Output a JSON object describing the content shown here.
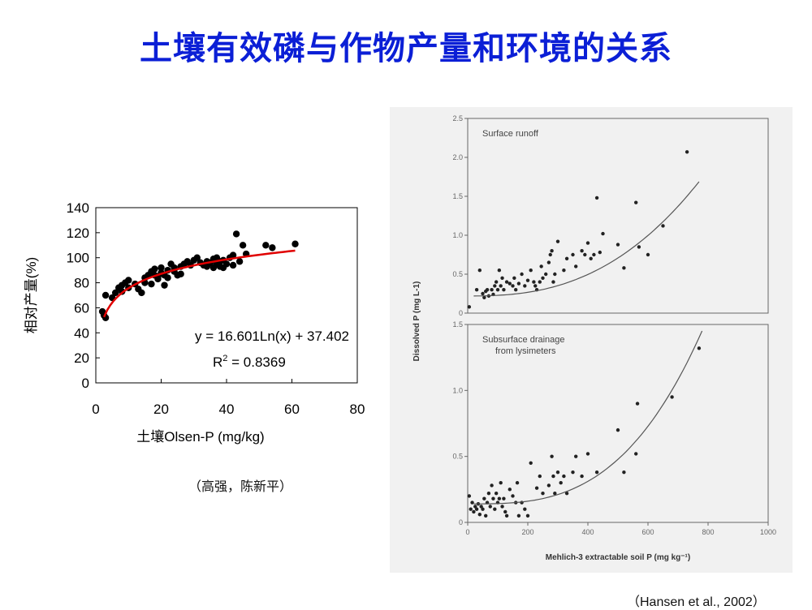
{
  "slide": {
    "title": "土壤有效磷与作物产量和环境的关系",
    "citation_left": "（高强，陈新平）",
    "citation_right": "（Hansen et al., 2002）"
  },
  "chart_data": [
    {
      "type": "scatter",
      "xlabel": "土壤Olsen-P (mg/kg)",
      "ylabel": "相对产量(%)",
      "xlim": [
        0,
        80
      ],
      "ylim": [
        0,
        140
      ],
      "xticks": [
        "0",
        "20",
        "40",
        "60",
        "80"
      ],
      "yticks": [
        "0",
        "20",
        "40",
        "60",
        "80",
        "100",
        "120",
        "140"
      ],
      "grid": false,
      "equation": "y = 16.601Ln(x) + 37.402",
      "r2_label": "R",
      "r2_sup": "2",
      "r2_value": " = 0.8369",
      "fit": {
        "kind": "logarithmic",
        "a": 16.601,
        "b": 37.402,
        "x_range": [
          2.5,
          61
        ],
        "color": "#e00000"
      },
      "points": [
        [
          2,
          57
        ],
        [
          2.5,
          54
        ],
        [
          3,
          52
        ],
        [
          3,
          70
        ],
        [
          5,
          68
        ],
        [
          6,
          72
        ],
        [
          7,
          76
        ],
        [
          8,
          78
        ],
        [
          8,
          73
        ],
        [
          9,
          80
        ],
        [
          10,
          82
        ],
        [
          10,
          76
        ],
        [
          12,
          79
        ],
        [
          13,
          75
        ],
        [
          14,
          72
        ],
        [
          15,
          80
        ],
        [
          15,
          84
        ],
        [
          16,
          86
        ],
        [
          17,
          79
        ],
        [
          17,
          89
        ],
        [
          18,
          86
        ],
        [
          18,
          91
        ],
        [
          19,
          83
        ],
        [
          19,
          85
        ],
        [
          20,
          88
        ],
        [
          20,
          92
        ],
        [
          21,
          78
        ],
        [
          21,
          86
        ],
        [
          22,
          90
        ],
        [
          22,
          84
        ],
        [
          23,
          95
        ],
        [
          24,
          89
        ],
        [
          24,
          92
        ],
        [
          25,
          86
        ],
        [
          26,
          93
        ],
        [
          26,
          87
        ],
        [
          27,
          95
        ],
        [
          28,
          97
        ],
        [
          29,
          94
        ],
        [
          30,
          98
        ],
        [
          31,
          100
        ],
        [
          32,
          96
        ],
        [
          33,
          94
        ],
        [
          34,
          97
        ],
        [
          34,
          93
        ],
        [
          35,
          96
        ],
        [
          36,
          99
        ],
        [
          36,
          92
        ],
        [
          37,
          95
        ],
        [
          37,
          100
        ],
        [
          38,
          93
        ],
        [
          38,
          97
        ],
        [
          39,
          92
        ],
        [
          39,
          98
        ],
        [
          40,
          95
        ],
        [
          41,
          100
        ],
        [
          42,
          94
        ],
        [
          42,
          102
        ],
        [
          43,
          119
        ],
        [
          44,
          97
        ],
        [
          45,
          110
        ],
        [
          46,
          103
        ],
        [
          52,
          110
        ],
        [
          54,
          108
        ],
        [
          61,
          111
        ]
      ]
    },
    {
      "type": "scatter",
      "panel_label": "Surface runoff",
      "xlim": [
        0,
        1000
      ],
      "ylim": [
        0,
        2.5
      ],
      "yticks": [
        "0",
        "0.5",
        "1.0",
        "1.5",
        "2.0",
        "2.5"
      ],
      "fit": {
        "kind": "curve",
        "color": "#555555"
      },
      "points": [
        [
          5,
          0.08
        ],
        [
          30,
          0.3
        ],
        [
          40,
          0.55
        ],
        [
          50,
          0.25
        ],
        [
          55,
          0.2
        ],
        [
          60,
          0.28
        ],
        [
          65,
          0.3
        ],
        [
          70,
          0.22
        ],
        [
          80,
          0.3
        ],
        [
          85,
          0.24
        ],
        [
          90,
          0.35
        ],
        [
          95,
          0.4
        ],
        [
          100,
          0.3
        ],
        [
          105,
          0.55
        ],
        [
          110,
          0.35
        ],
        [
          115,
          0.45
        ],
        [
          120,
          0.3
        ],
        [
          130,
          0.4
        ],
        [
          140,
          0.38
        ],
        [
          150,
          0.35
        ],
        [
          155,
          0.45
        ],
        [
          160,
          0.3
        ],
        [
          170,
          0.38
        ],
        [
          180,
          0.5
        ],
        [
          190,
          0.35
        ],
        [
          200,
          0.42
        ],
        [
          210,
          0.55
        ],
        [
          220,
          0.4
        ],
        [
          225,
          0.35
        ],
        [
          230,
          0.3
        ],
        [
          240,
          0.4
        ],
        [
          245,
          0.6
        ],
        [
          250,
          0.45
        ],
        [
          260,
          0.5
        ],
        [
          270,
          0.65
        ],
        [
          275,
          0.75
        ],
        [
          280,
          0.8
        ],
        [
          285,
          0.4
        ],
        [
          290,
          0.5
        ],
        [
          300,
          0.92
        ],
        [
          320,
          0.55
        ],
        [
          330,
          0.7
        ],
        [
          350,
          0.75
        ],
        [
          360,
          0.6
        ],
        [
          380,
          0.8
        ],
        [
          390,
          0.75
        ],
        [
          400,
          0.9
        ],
        [
          410,
          0.7
        ],
        [
          420,
          0.75
        ],
        [
          430,
          1.48
        ],
        [
          440,
          0.78
        ],
        [
          450,
          1.02
        ],
        [
          500,
          0.88
        ],
        [
          520,
          0.58
        ],
        [
          560,
          1.42
        ],
        [
          570,
          0.85
        ],
        [
          600,
          0.75
        ],
        [
          650,
          1.12
        ],
        [
          730,
          2.07
        ]
      ]
    },
    {
      "type": "scatter",
      "panel_label": "Subsurface drainage from lysimeters",
      "xlabel": "Mehlich-3 extractable soil P (mg kg⁻¹)",
      "ylabel": "Dissolved P (mg L-1)",
      "xlim": [
        0,
        1000
      ],
      "ylim": [
        0,
        1.5
      ],
      "xticks": [
        "0",
        "200",
        "400",
        "600",
        "800",
        "1000"
      ],
      "yticks": [
        "0",
        "0.5",
        "1.0",
        "1.5"
      ],
      "fit": {
        "kind": "curve",
        "color": "#555555"
      },
      "points": [
        [
          5,
          0.2
        ],
        [
          10,
          0.1
        ],
        [
          15,
          0.15
        ],
        [
          20,
          0.08
        ],
        [
          25,
          0.12
        ],
        [
          30,
          0.1
        ],
        [
          35,
          0.14
        ],
        [
          40,
          0.06
        ],
        [
          45,
          0.12
        ],
        [
          50,
          0.1
        ],
        [
          55,
          0.18
        ],
        [
          60,
          0.05
        ],
        [
          65,
          0.15
        ],
        [
          70,
          0.22
        ],
        [
          75,
          0.12
        ],
        [
          80,
          0.28
        ],
        [
          85,
          0.18
        ],
        [
          90,
          0.1
        ],
        [
          95,
          0.22
        ],
        [
          100,
          0.15
        ],
        [
          105,
          0.18
        ],
        [
          110,
          0.3
        ],
        [
          115,
          0.12
        ],
        [
          120,
          0.18
        ],
        [
          125,
          0.08
        ],
        [
          130,
          0.05
        ],
        [
          140,
          0.25
        ],
        [
          150,
          0.2
        ],
        [
          160,
          0.15
        ],
        [
          165,
          0.3
        ],
        [
          170,
          0.05
        ],
        [
          180,
          0.15
        ],
        [
          190,
          0.1
        ],
        [
          200,
          0.05
        ],
        [
          210,
          0.45
        ],
        [
          230,
          0.26
        ],
        [
          240,
          0.35
        ],
        [
          250,
          0.22
        ],
        [
          270,
          0.28
        ],
        [
          280,
          0.5
        ],
        [
          285,
          0.35
        ],
        [
          290,
          0.22
        ],
        [
          300,
          0.38
        ],
        [
          310,
          0.3
        ],
        [
          320,
          0.35
        ],
        [
          330,
          0.22
        ],
        [
          350,
          0.38
        ],
        [
          360,
          0.5
        ],
        [
          380,
          0.35
        ],
        [
          400,
          0.52
        ],
        [
          430,
          0.38
        ],
        [
          500,
          0.7
        ],
        [
          520,
          0.38
        ],
        [
          560,
          0.52
        ],
        [
          565,
          0.9
        ],
        [
          680,
          0.95
        ],
        [
          770,
          1.32
        ]
      ]
    }
  ]
}
